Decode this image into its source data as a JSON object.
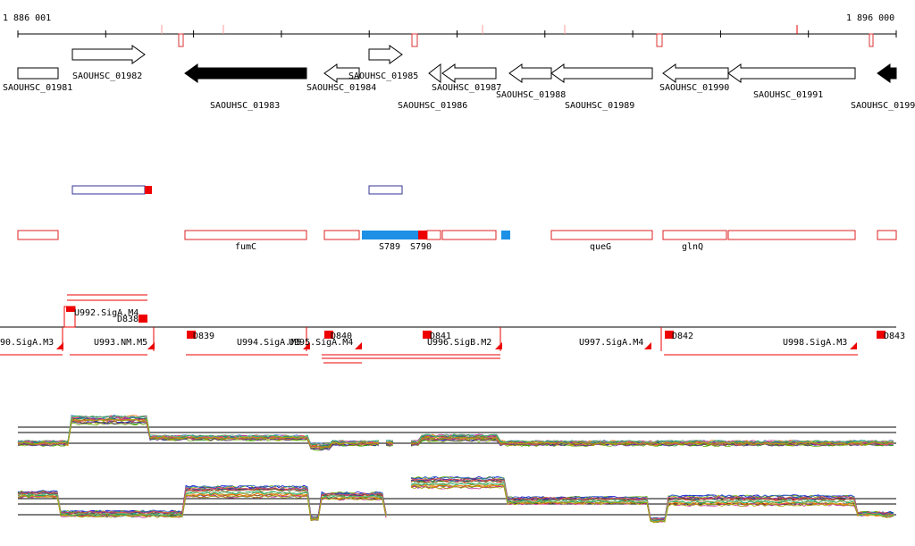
{
  "header": {
    "start": "1 886 001",
    "end": "1 896 000"
  },
  "genes": [
    {
      "label": "SAOUHSC_01981"
    },
    {
      "label": "SAOUHSC_01982"
    },
    {
      "label": "SAOUHSC_01983"
    },
    {
      "label": "SAOUHSC_01984"
    },
    {
      "label": "SAOUHSC_01985"
    },
    {
      "label": "SAOUHSC_01986"
    },
    {
      "label": "SAOUHSC_01987"
    },
    {
      "label": "SAOUHSC_01988"
    },
    {
      "label": "SAOUHSC_01989"
    },
    {
      "label": "SAOUHSC_01990"
    },
    {
      "label": "SAOUHSC_01991"
    },
    {
      "label": "SAOUHSC_0199"
    }
  ],
  "features": [
    {
      "label": "fumC"
    },
    {
      "label": "S789"
    },
    {
      "label": "S790"
    },
    {
      "label": "queG"
    },
    {
      "label": "glnQ"
    }
  ],
  "units": [
    {
      "label": "90.SigA.M3"
    },
    {
      "label": "U992.SigA.M4"
    },
    {
      "label": "U993.NM.M5"
    },
    {
      "label": "U994.SigA.M5"
    },
    {
      "label": "U995.SigA.M4"
    },
    {
      "label": "U996.SigB.M2"
    },
    {
      "label": "U997.SigA.M4"
    },
    {
      "label": "U998.SigA.M3"
    }
  ],
  "promoters": [
    {
      "label": "D838"
    },
    {
      "label": "D839"
    },
    {
      "label": "D840"
    },
    {
      "label": "D841"
    },
    {
      "label": "D842"
    },
    {
      "label": "D843"
    }
  ]
}
